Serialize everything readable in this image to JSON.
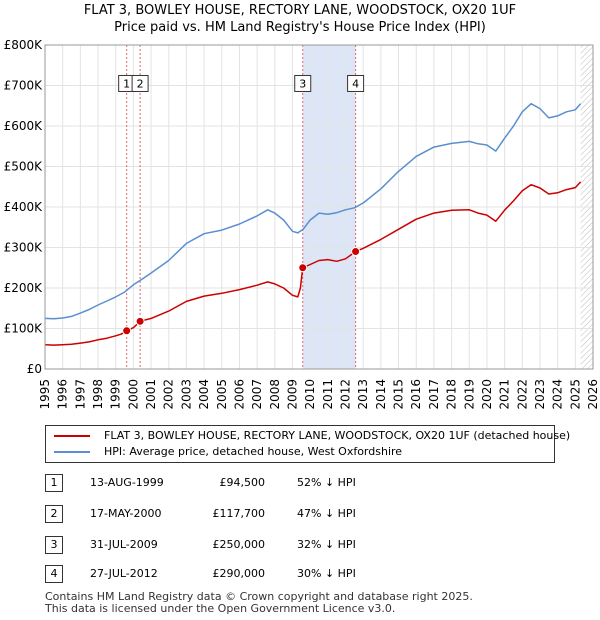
{
  "title_line1": "FLAT 3, BOWLEY HOUSE, RECTORY LANE, WOODSTOCK, OX20 1UF",
  "title_line2": "Price paid vs. HM Land Registry's House Price Index (HPI)",
  "chart_data": {
    "type": "line",
    "title": "FLAT 3, BOWLEY HOUSE, RECTORY LANE, WOODSTOCK, OX20 1UF",
    "subtitle": "Price paid vs. HM Land Registry's House Price Index (HPI)",
    "xlabel": "",
    "ylabel": "",
    "xlim": [
      1995,
      2026
    ],
    "ylim": [
      0,
      800000
    ],
    "y_ticks": [
      {
        "value": 0,
        "label": "£0"
      },
      {
        "value": 100000,
        "label": "£100K"
      },
      {
        "value": 200000,
        "label": "£200K"
      },
      {
        "value": 300000,
        "label": "£300K"
      },
      {
        "value": 400000,
        "label": "£400K"
      },
      {
        "value": 500000,
        "label": "£500K"
      },
      {
        "value": 600000,
        "label": "£600K"
      },
      {
        "value": 700000,
        "label": "£700K"
      },
      {
        "value": 800000,
        "label": "£800K"
      }
    ],
    "x_ticks": [
      1995,
      1996,
      1997,
      1998,
      1999,
      2000,
      2001,
      2002,
      2003,
      2004,
      2005,
      2006,
      2007,
      2008,
      2009,
      2010,
      2011,
      2012,
      2013,
      2014,
      2015,
      2016,
      2017,
      2018,
      2019,
      2020,
      2021,
      2022,
      2023,
      2024,
      2025,
      2026
    ],
    "grid": true,
    "shaded_ranges": [
      [
        2009.58,
        2012.57
      ]
    ],
    "hatched_from": 2025.3,
    "series": [
      {
        "name": "FLAT 3, BOWLEY HOUSE, RECTORY LANE, WOODSTOCK, OX20 1UF (detached house)",
        "color": "#cc0000",
        "points": [
          [
            1995.0,
            60000
          ],
          [
            1995.5,
            59000
          ],
          [
            1996.0,
            60000
          ],
          [
            1996.5,
            61000
          ],
          [
            1997.0,
            64000
          ],
          [
            1997.5,
            67000
          ],
          [
            1998.0,
            72000
          ],
          [
            1998.5,
            76000
          ],
          [
            1999.0,
            82000
          ],
          [
            1999.3,
            86000
          ],
          [
            1999.62,
            94500
          ],
          [
            2000.0,
            102000
          ],
          [
            2000.38,
            117700
          ],
          [
            2001.0,
            125000
          ],
          [
            2002.0,
            143000
          ],
          [
            2003.0,
            167000
          ],
          [
            2004.0,
            180000
          ],
          [
            2005.0,
            187000
          ],
          [
            2006.0,
            196000
          ],
          [
            2007.0,
            207000
          ],
          [
            2007.6,
            215000
          ],
          [
            2008.0,
            210000
          ],
          [
            2008.5,
            200000
          ],
          [
            2009.0,
            182000
          ],
          [
            2009.3,
            178000
          ],
          [
            2009.45,
            200000
          ],
          [
            2009.58,
            250000
          ],
          [
            2010.0,
            258000
          ],
          [
            2010.5,
            268000
          ],
          [
            2011.0,
            270000
          ],
          [
            2011.5,
            266000
          ],
          [
            2012.0,
            272000
          ],
          [
            2012.57,
            290000
          ],
          [
            2013.0,
            298000
          ],
          [
            2014.0,
            320000
          ],
          [
            2015.0,
            345000
          ],
          [
            2016.0,
            370000
          ],
          [
            2017.0,
            385000
          ],
          [
            2018.0,
            392000
          ],
          [
            2019.0,
            393000
          ],
          [
            2019.5,
            385000
          ],
          [
            2020.0,
            380000
          ],
          [
            2020.5,
            365000
          ],
          [
            2021.0,
            392000
          ],
          [
            2021.5,
            415000
          ],
          [
            2022.0,
            440000
          ],
          [
            2022.5,
            455000
          ],
          [
            2023.0,
            447000
          ],
          [
            2023.5,
            432000
          ],
          [
            2024.0,
            435000
          ],
          [
            2024.5,
            443000
          ],
          [
            2025.0,
            448000
          ],
          [
            2025.3,
            462000
          ]
        ]
      },
      {
        "name": "HPI: Average price, detached house, West Oxfordshire",
        "color": "#5a8fcf",
        "points": [
          [
            1995.0,
            125000
          ],
          [
            1995.5,
            124000
          ],
          [
            1996.0,
            126000
          ],
          [
            1996.5,
            130000
          ],
          [
            1997.0,
            138000
          ],
          [
            1997.5,
            147000
          ],
          [
            1998.0,
            158000
          ],
          [
            1998.5,
            168000
          ],
          [
            1999.0,
            178000
          ],
          [
            1999.5,
            190000
          ],
          [
            2000.0,
            208000
          ],
          [
            2000.5,
            222000
          ],
          [
            2001.0,
            237000
          ],
          [
            2002.0,
            268000
          ],
          [
            2003.0,
            310000
          ],
          [
            2004.0,
            334000
          ],
          [
            2005.0,
            343000
          ],
          [
            2006.0,
            358000
          ],
          [
            2007.0,
            378000
          ],
          [
            2007.6,
            393000
          ],
          [
            2008.0,
            385000
          ],
          [
            2008.5,
            368000
          ],
          [
            2009.0,
            340000
          ],
          [
            2009.3,
            336000
          ],
          [
            2009.6,
            345000
          ],
          [
            2010.0,
            368000
          ],
          [
            2010.5,
            385000
          ],
          [
            2011.0,
            382000
          ],
          [
            2011.5,
            386000
          ],
          [
            2012.0,
            393000
          ],
          [
            2012.5,
            398000
          ],
          [
            2013.0,
            410000
          ],
          [
            2014.0,
            445000
          ],
          [
            2015.0,
            488000
          ],
          [
            2016.0,
            525000
          ],
          [
            2017.0,
            548000
          ],
          [
            2018.0,
            557000
          ],
          [
            2019.0,
            562000
          ],
          [
            2019.5,
            556000
          ],
          [
            2020.0,
            553000
          ],
          [
            2020.5,
            538000
          ],
          [
            2021.0,
            570000
          ],
          [
            2021.5,
            600000
          ],
          [
            2022.0,
            635000
          ],
          [
            2022.5,
            655000
          ],
          [
            2023.0,
            643000
          ],
          [
            2023.5,
            620000
          ],
          [
            2024.0,
            625000
          ],
          [
            2024.5,
            635000
          ],
          [
            2025.0,
            640000
          ],
          [
            2025.3,
            655000
          ]
        ]
      }
    ],
    "markers": [
      {
        "id": "1",
        "x": 1999.62,
        "y": 94500,
        "label_y": 705000
      },
      {
        "id": "2",
        "x": 2000.38,
        "y": 117700,
        "label_y": 705000
      },
      {
        "id": "3",
        "x": 2009.58,
        "y": 250000,
        "label_y": 705000
      },
      {
        "id": "4",
        "x": 2012.57,
        "y": 290000,
        "label_y": 705000
      }
    ]
  },
  "legend": {
    "items": [
      {
        "label": "FLAT 3, BOWLEY HOUSE, RECTORY LANE, WOODSTOCK, OX20 1UF (detached house)",
        "color": "#cc0000"
      },
      {
        "label": "HPI: Average price, detached house, West Oxfordshire",
        "color": "#5a8fcf"
      }
    ]
  },
  "transactions": [
    {
      "num": "1",
      "date": "13-AUG-1999",
      "price": "£94,500",
      "hpi": "52% ↓ HPI"
    },
    {
      "num": "2",
      "date": "17-MAY-2000",
      "price": "£117,700",
      "hpi": "47% ↓ HPI"
    },
    {
      "num": "3",
      "date": "31-JUL-2009",
      "price": "£250,000",
      "hpi": "32% ↓ HPI"
    },
    {
      "num": "4",
      "date": "27-JUL-2012",
      "price": "£290,000",
      "hpi": "30% ↓ HPI"
    }
  ],
  "footer": {
    "line1": "Contains HM Land Registry data © Crown copyright and database right 2025.",
    "line2": "This data is licensed under the Open Government Licence v3.0."
  }
}
